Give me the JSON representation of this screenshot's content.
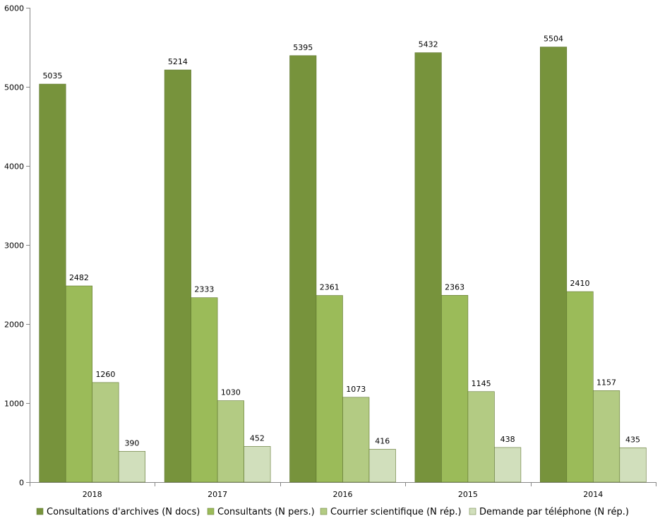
{
  "chart_data": {
    "type": "bar",
    "title": "",
    "xlabel": "",
    "ylabel": "",
    "categories": [
      "2018",
      "2017",
      "2016",
      "2015",
      "2014"
    ],
    "ylim": [
      0,
      6000
    ],
    "yticks": [
      0,
      1000,
      2000,
      3000,
      4000,
      5000,
      6000
    ],
    "grid": false,
    "legend_position": "bottom",
    "data_labels": true,
    "series": [
      {
        "name": "Consultations d'archives (N docs)",
        "color": "#77933c",
        "values": [
          5035,
          5214,
          5395,
          5432,
          5504
        ]
      },
      {
        "name": "Consultants (N pers.)",
        "color": "#9bbb59",
        "values": [
          2482,
          2333,
          2361,
          2363,
          2410
        ]
      },
      {
        "name": "Courrier scientifique (N rép.)",
        "color": "#b3cb83",
        "values": [
          1260,
          1030,
          1073,
          1145,
          1157
        ]
      },
      {
        "name": "Demande par téléphone (N rép.)",
        "color": "#d1dfbc",
        "values": [
          390,
          452,
          416,
          438,
          435
        ]
      }
    ]
  }
}
